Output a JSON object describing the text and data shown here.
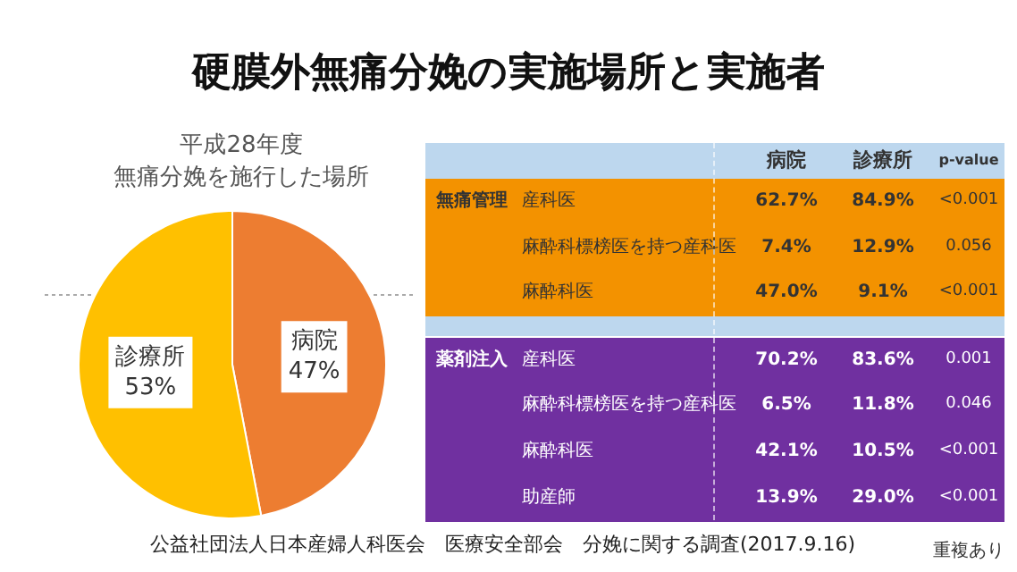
{
  "chart_data": [
    {
      "type": "pie",
      "title": "平成28年度",
      "subtitle": "無痛分娩を施行した場所",
      "categories": [
        "病院",
        "診療所"
      ],
      "values": [
        47,
        53
      ],
      "colors": [
        "#ed7d31",
        "#ffc000"
      ],
      "value_labels": [
        "47%",
        "53%"
      ],
      "legend": false,
      "annotations": [
        "硬膜外無痛分娩の実施場所と実施者",
        "公益社団法人日本産婦人科医会　医療安全部会　分娩に関する調査(2017.9.16)"
      ]
    },
    {
      "type": "other",
      "categories": [
        "病院",
        "診療所",
        "p-value"
      ],
      "y_categories": [
        "無痛管理",
        null,
        null,
        "薬剤注入",
        null,
        null,
        null
      ],
      "y2_categories": [
        "産科医",
        "麻酔科標榜医を持つ産科医",
        "麻酔科医",
        "産科医",
        "麻酔科標榜医を持つ産科医",
        "麻酔科医",
        "助産師"
      ],
      "cell_labels": [
        [
          "62.7%",
          "84.9%",
          "<0.001"
        ],
        [
          "7.4%",
          "12.9%",
          "0.056"
        ],
        [
          "47.0%",
          "9.1%",
          "<0.001"
        ],
        [
          "70.2%",
          "83.6%",
          "0.001"
        ],
        [
          "6.5%",
          "11.8%",
          "0.046"
        ],
        [
          "42.1%",
          "10.5%",
          "<0.001"
        ],
        [
          "13.9%",
          "29.0%",
          "<0.001"
        ]
      ],
      "annotations": [
        "重複あり"
      ]
    }
  ]
}
